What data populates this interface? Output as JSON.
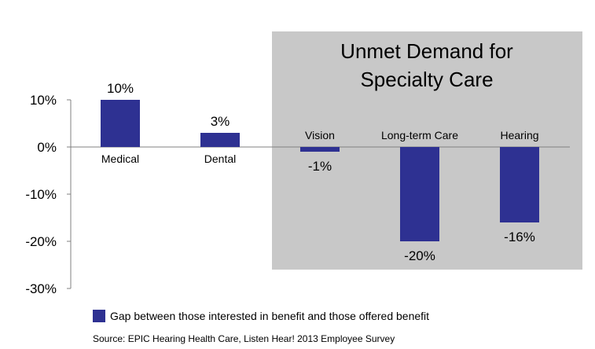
{
  "chart_data": {
    "type": "bar",
    "categories": [
      "Medical",
      "Dental",
      "Vision",
      "Long-term  Care",
      "Hearing"
    ],
    "series": [
      {
        "name": "Gap between those interested in benefit and those offered benefit",
        "values": [
          10,
          3,
          -1,
          -20,
          -16
        ]
      }
    ],
    "data_labels": [
      "10%",
      "3%",
      "-1%",
      "-20%",
      "-16%"
    ],
    "y_ticks": [
      10,
      0,
      -10,
      -20,
      -30
    ],
    "y_tick_labels": [
      "10%",
      "0%",
      "-10%",
      "-20%",
      "-30%"
    ],
    "ylim": [
      -30,
      10
    ],
    "grid": false,
    "legend_position": "bottom-left",
    "colors": {
      "bar": "#2e3192",
      "highlight_box": "#c8c8c8",
      "axis": "#808080"
    },
    "annotation": {
      "title_lines": [
        "Unmet Demand for",
        "Specialty Care"
      ],
      "highlighted_categories": [
        "Vision",
        "Long-term  Care",
        "Hearing"
      ]
    }
  },
  "legend": {
    "label": "Gap between those interested in benefit and those offered benefit"
  },
  "source": "Source: EPIC Hearing Health Care, Listen Hear! 2013 Employee Survey"
}
